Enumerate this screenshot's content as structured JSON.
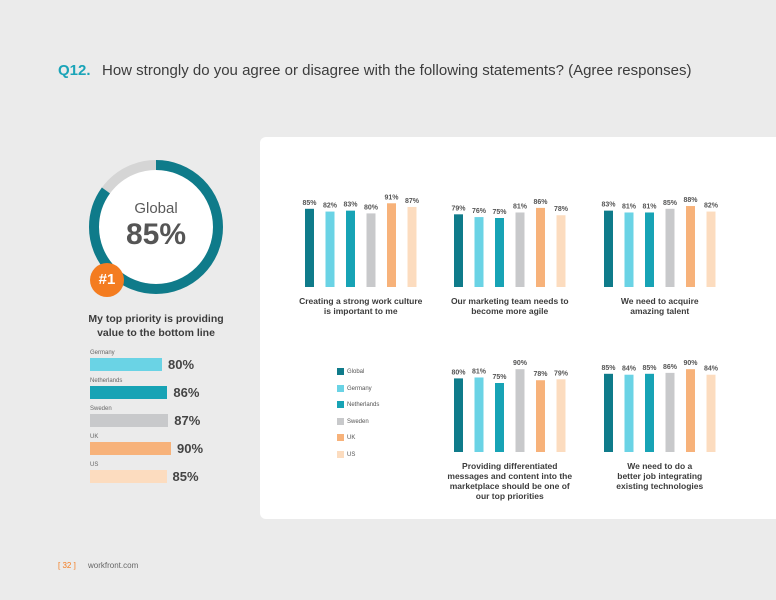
{
  "question": {
    "number": "Q12.",
    "text": "How strongly do you agree or disagree with the following statements? (Agree responses)"
  },
  "highlight": {
    "label": "Global",
    "value": "85%",
    "rank": "#1",
    "statement_line1": "My top priority is providing",
    "statement_line2": "value to the bottom line",
    "percent": 85,
    "bars": [
      {
        "country": "Germany",
        "value": 80,
        "display": "80%"
      },
      {
        "country": "Netherlands",
        "value": 86,
        "display": "86%"
      },
      {
        "country": "Sweden",
        "value": 87,
        "display": "87%"
      },
      {
        "country": "UK",
        "value": 90,
        "display": "90%"
      },
      {
        "country": "US",
        "value": 85,
        "display": "85%"
      }
    ]
  },
  "legend": [
    "Global",
    "Germany",
    "Netherlands",
    "Sweden",
    "UK",
    "US"
  ],
  "colors": {
    "Global": "#0f7b8a",
    "Germany": "#6ad3e5",
    "Netherlands": "#17a3b5",
    "Sweden": "#c8c9cb",
    "UK": "#f7b27a",
    "US": "#fcdcbf",
    "accent": "#1aa4b8",
    "badge": "#f47c20"
  },
  "chart_data": {
    "type": "bar",
    "series_names": [
      "Global",
      "Germany",
      "Netherlands",
      "Sweden",
      "UK",
      "US"
    ],
    "groups": [
      {
        "label_lines": [
          "Creating a strong work culture",
          "is important to me"
        ],
        "values": [
          85,
          82,
          83,
          80,
          91,
          87
        ]
      },
      {
        "label_lines": [
          "Our marketing team needs to",
          "become more agile"
        ],
        "values": [
          79,
          76,
          75,
          81,
          86,
          78
        ]
      },
      {
        "label_lines": [
          "We need to acquire",
          "amazing talent"
        ],
        "values": [
          83,
          81,
          81,
          85,
          88,
          82
        ]
      },
      {
        "label_lines": [
          "Providing differentiated",
          "messages and content into the",
          "marketplace should be one of",
          "our top priorities"
        ],
        "values": [
          80,
          81,
          75,
          90,
          78,
          79
        ]
      },
      {
        "label_lines": [
          "We need to do a",
          "better job integrating",
          "existing technologies"
        ],
        "values": [
          85,
          84,
          85,
          86,
          90,
          84
        ]
      }
    ]
  },
  "footer": {
    "page": "[ 32 ]",
    "site": "workfront.com"
  }
}
